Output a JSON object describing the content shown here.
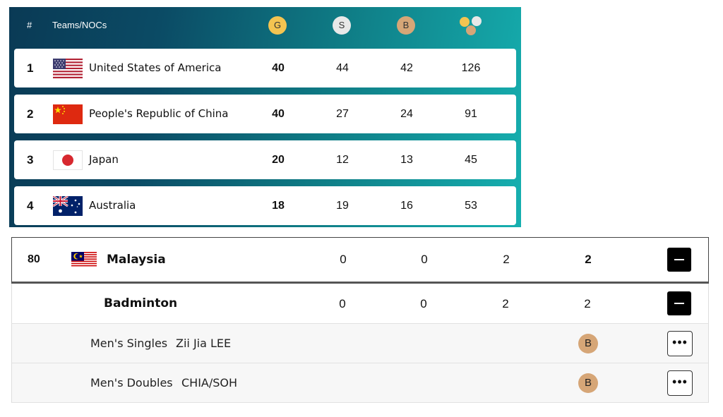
{
  "medal_table": {
    "header": {
      "rank": "#",
      "teams": "Teams/NOCs",
      "gold": "G",
      "silver": "S",
      "bronze": "B",
      "total_icon": "medals-total-icon"
    },
    "rows": [
      {
        "rank": "1",
        "name": "United States of America",
        "flag": "usa-flag-icon",
        "gold": "40",
        "silver": "44",
        "bronze": "42",
        "total": "126"
      },
      {
        "rank": "2",
        "name": "People's Republic of China",
        "flag": "china-flag-icon",
        "gold": "40",
        "silver": "27",
        "bronze": "24",
        "total": "91"
      },
      {
        "rank": "3",
        "name": "Japan",
        "flag": "japan-flag-icon",
        "gold": "20",
        "silver": "12",
        "bronze": "13",
        "total": "45"
      },
      {
        "rank": "4",
        "name": "Australia",
        "flag": "australia-flag-icon",
        "gold": "18",
        "silver": "19",
        "bronze": "16",
        "total": "53"
      }
    ]
  },
  "country_detail": {
    "rank": "80",
    "name": "Malaysia",
    "flag": "malaysia-flag-icon",
    "gold": "0",
    "silver": "0",
    "bronze": "2",
    "total": "2",
    "sport": {
      "name": "Badminton",
      "gold": "0",
      "silver": "0",
      "bronze": "2",
      "total": "2"
    },
    "events": [
      {
        "event": "Men's Singles",
        "athlete": "Zii Jia LEE",
        "medal": "B"
      },
      {
        "event": "Men's Doubles",
        "athlete": "CHIA/SOH",
        "medal": "B"
      }
    ]
  },
  "colors": {
    "gold": "#f4c451",
    "silver": "#e8e8e8",
    "bronze": "#d6a677",
    "panel_start": "#0a3a55",
    "panel_end": "#16b0b0"
  }
}
